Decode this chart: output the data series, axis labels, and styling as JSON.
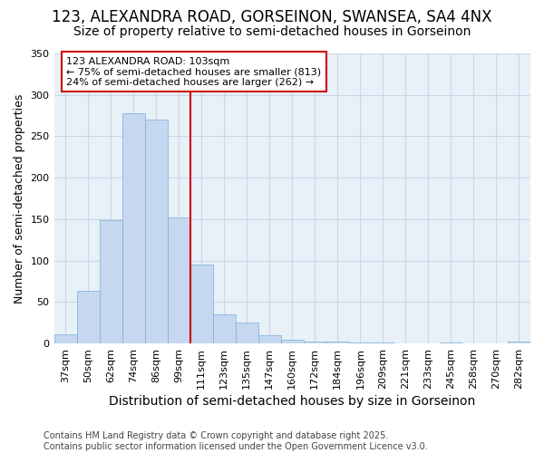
{
  "title_line1": "123, ALEXANDRA ROAD, GORSEINON, SWANSEA, SA4 4NX",
  "title_line2": "Size of property relative to semi-detached houses in Gorseinon",
  "xlabel": "Distribution of semi-detached houses by size in Gorseinon",
  "ylabel": "Number of semi-detached properties",
  "categories": [
    "37sqm",
    "50sqm",
    "62sqm",
    "74sqm",
    "86sqm",
    "99sqm",
    "111sqm",
    "123sqm",
    "135sqm",
    "147sqm",
    "160sqm",
    "172sqm",
    "184sqm",
    "196sqm",
    "209sqm",
    "221sqm",
    "233sqm",
    "245sqm",
    "258sqm",
    "270sqm",
    "282sqm"
  ],
  "values": [
    11,
    64,
    149,
    278,
    270,
    152,
    95,
    35,
    25,
    10,
    4,
    2,
    2,
    1,
    1,
    0,
    0,
    1,
    0,
    0,
    2
  ],
  "bar_color": "#c5d8f0",
  "bar_edge_color": "#7aaed6",
  "annotation_text": "123 ALEXANDRA ROAD: 103sqm\n← 75% of semi-detached houses are smaller (813)\n24% of semi-detached houses are larger (262) →",
  "annotation_box_color": "#ffffff",
  "annotation_box_edge_color": "#cc0000",
  "red_line_color": "#cc0000",
  "grid_color": "#c8d8e8",
  "background_color": "#ffffff",
  "plot_bg_color": "#e8f0f8",
  "ylim": [
    0,
    350
  ],
  "yticks": [
    0,
    50,
    100,
    150,
    200,
    250,
    300,
    350
  ],
  "footer_text": "Contains HM Land Registry data © Crown copyright and database right 2025.\nContains public sector information licensed under the Open Government Licence v3.0.",
  "title_fontsize": 12,
  "subtitle_fontsize": 10,
  "xlabel_fontsize": 10,
  "ylabel_fontsize": 9,
  "tick_fontsize": 8,
  "annotation_fontsize": 8,
  "footer_fontsize": 7,
  "red_line_bin": 5.5
}
